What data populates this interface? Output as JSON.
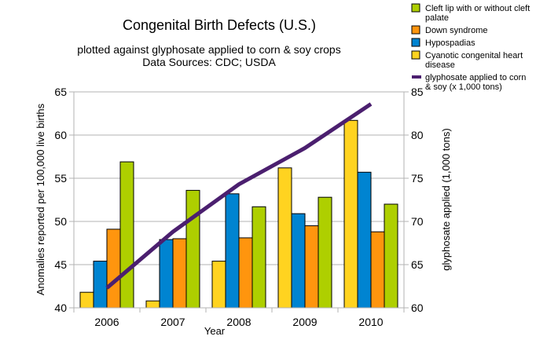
{
  "chart_data": {
    "type": "bar",
    "title": "Congenital Birth Defects (U.S.)",
    "subtitle_lines": [
      "plotted against glyphosate applied to corn & soy crops",
      "Data Sources: CDC; USDA"
    ],
    "xlabel": "Year",
    "ylabel": "Anomalies reported per 100,000 live births",
    "y2label": "glyphosate applied (1,000 tons)",
    "ylim": [
      40,
      65
    ],
    "y2lim": [
      60,
      85
    ],
    "yticks": [
      "40",
      "45",
      "50",
      "55",
      "60",
      "65"
    ],
    "y2ticks": [
      "60",
      "65",
      "70",
      "75",
      "80",
      "85"
    ],
    "categories": [
      "2006",
      "2007",
      "2008",
      "2009",
      "2010"
    ],
    "grid": "horizontal",
    "legend_position": "top-right",
    "series": [
      {
        "name": "Cyanotic congenital heart disease",
        "legend_lines": [
          "Cyanotic congenital heart",
          "disease"
        ],
        "color": "#ffd320",
        "values": [
          41.8,
          40.8,
          45.4,
          56.2,
          61.7
        ]
      },
      {
        "name": "Hypospadias",
        "legend_lines": [
          "Hypospadias"
        ],
        "color": "#0084d1",
        "values": [
          45.4,
          47.9,
          53.2,
          50.9,
          55.7
        ]
      },
      {
        "name": "Down syndrome",
        "legend_lines": [
          "Down syndrome"
        ],
        "color": "#ff950e",
        "values": [
          49.1,
          48.0,
          48.1,
          49.5,
          48.8
        ]
      },
      {
        "name": "Cleft lip with or without cleft palate",
        "legend_lines": [
          "Cleft lip with or without cleft",
          "palate"
        ],
        "color": "#aecf00",
        "values": [
          56.9,
          53.6,
          51.7,
          52.8,
          52.0
        ]
      }
    ],
    "line_series": {
      "name": "glyphosate applied to corn & soy (x 1,000 tons)",
      "legend_lines": [
        "glyphosate applied to corn",
        "& soy (x 1,000 tons)"
      ],
      "color": "#4b1f6f",
      "axis": "right",
      "values": [
        62.3,
        68.8,
        74.3,
        78.5,
        83.6
      ]
    },
    "legend_order": [
      3,
      2,
      1,
      0,
      "line"
    ]
  }
}
